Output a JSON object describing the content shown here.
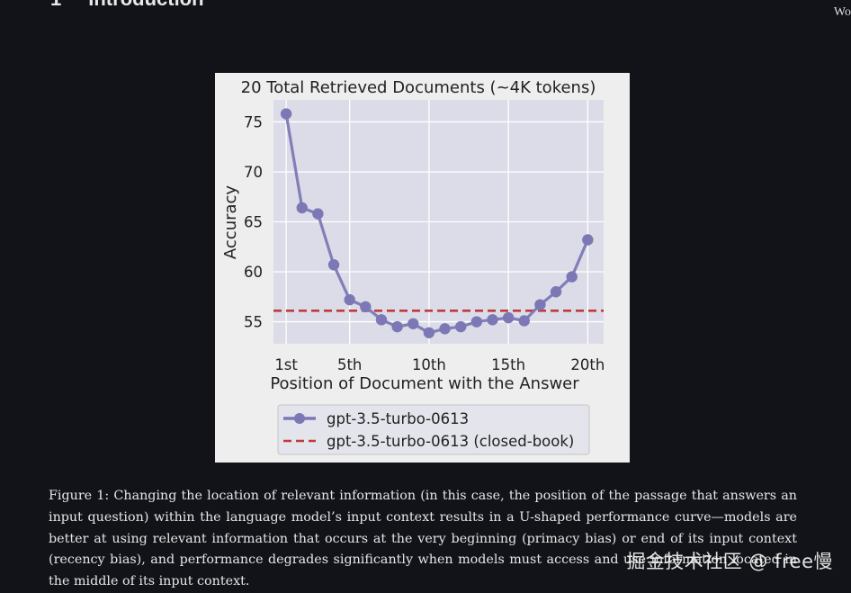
{
  "section": {
    "number": "1",
    "title": "Introduction"
  },
  "corner_text": "Wo",
  "chart_data": {
    "type": "line",
    "title": "20 Total Retrieved Documents (~4K tokens)",
    "xlabel": "Position of Document with the Answer",
    "ylabel": "Accuracy",
    "x": [
      1,
      2,
      3,
      4,
      5,
      6,
      7,
      8,
      9,
      10,
      11,
      12,
      13,
      14,
      15,
      16,
      17,
      18,
      19,
      20
    ],
    "xticks": [
      1,
      5,
      10,
      15,
      20
    ],
    "xtick_labels": [
      "1st",
      "5th",
      "10th",
      "15th",
      "20th"
    ],
    "yticks": [
      55,
      60,
      65,
      70,
      75
    ],
    "xlim": [
      0.2,
      21
    ],
    "ylim": [
      52.8,
      77.2
    ],
    "grid": true,
    "legend_placement": "below",
    "series": [
      {
        "name": "gpt-3.5-turbo-0613",
        "color": "#7b78b5",
        "style": "line-marker",
        "values": [
          75.8,
          66.4,
          65.8,
          60.7,
          57.2,
          56.5,
          55.2,
          54.5,
          54.8,
          53.9,
          54.3,
          54.5,
          55.0,
          55.2,
          55.4,
          55.1,
          56.7,
          58.0,
          59.5,
          63.2
        ]
      },
      {
        "name": "gpt-3.5-turbo-0613 (closed-book)",
        "color": "#c0393b",
        "style": "dashed",
        "values": [
          56.1,
          56.1,
          56.1,
          56.1,
          56.1,
          56.1,
          56.1,
          56.1,
          56.1,
          56.1,
          56.1,
          56.1,
          56.1,
          56.1,
          56.1,
          56.1,
          56.1,
          56.1,
          56.1,
          56.1
        ]
      }
    ]
  },
  "caption": "Figure 1: Changing the location of relevant information (in this case, the position of the passage that answers an input question) within the language model’s input context results in a U-shaped performance curve—models are better at using relevant information that occurs at the very beginning (primacy bias) or end of its input context (recency bias), and performance degrades significantly when models must access and use information located in the middle of its input context.",
  "watermark": "掘金技术社区 @ free慢"
}
